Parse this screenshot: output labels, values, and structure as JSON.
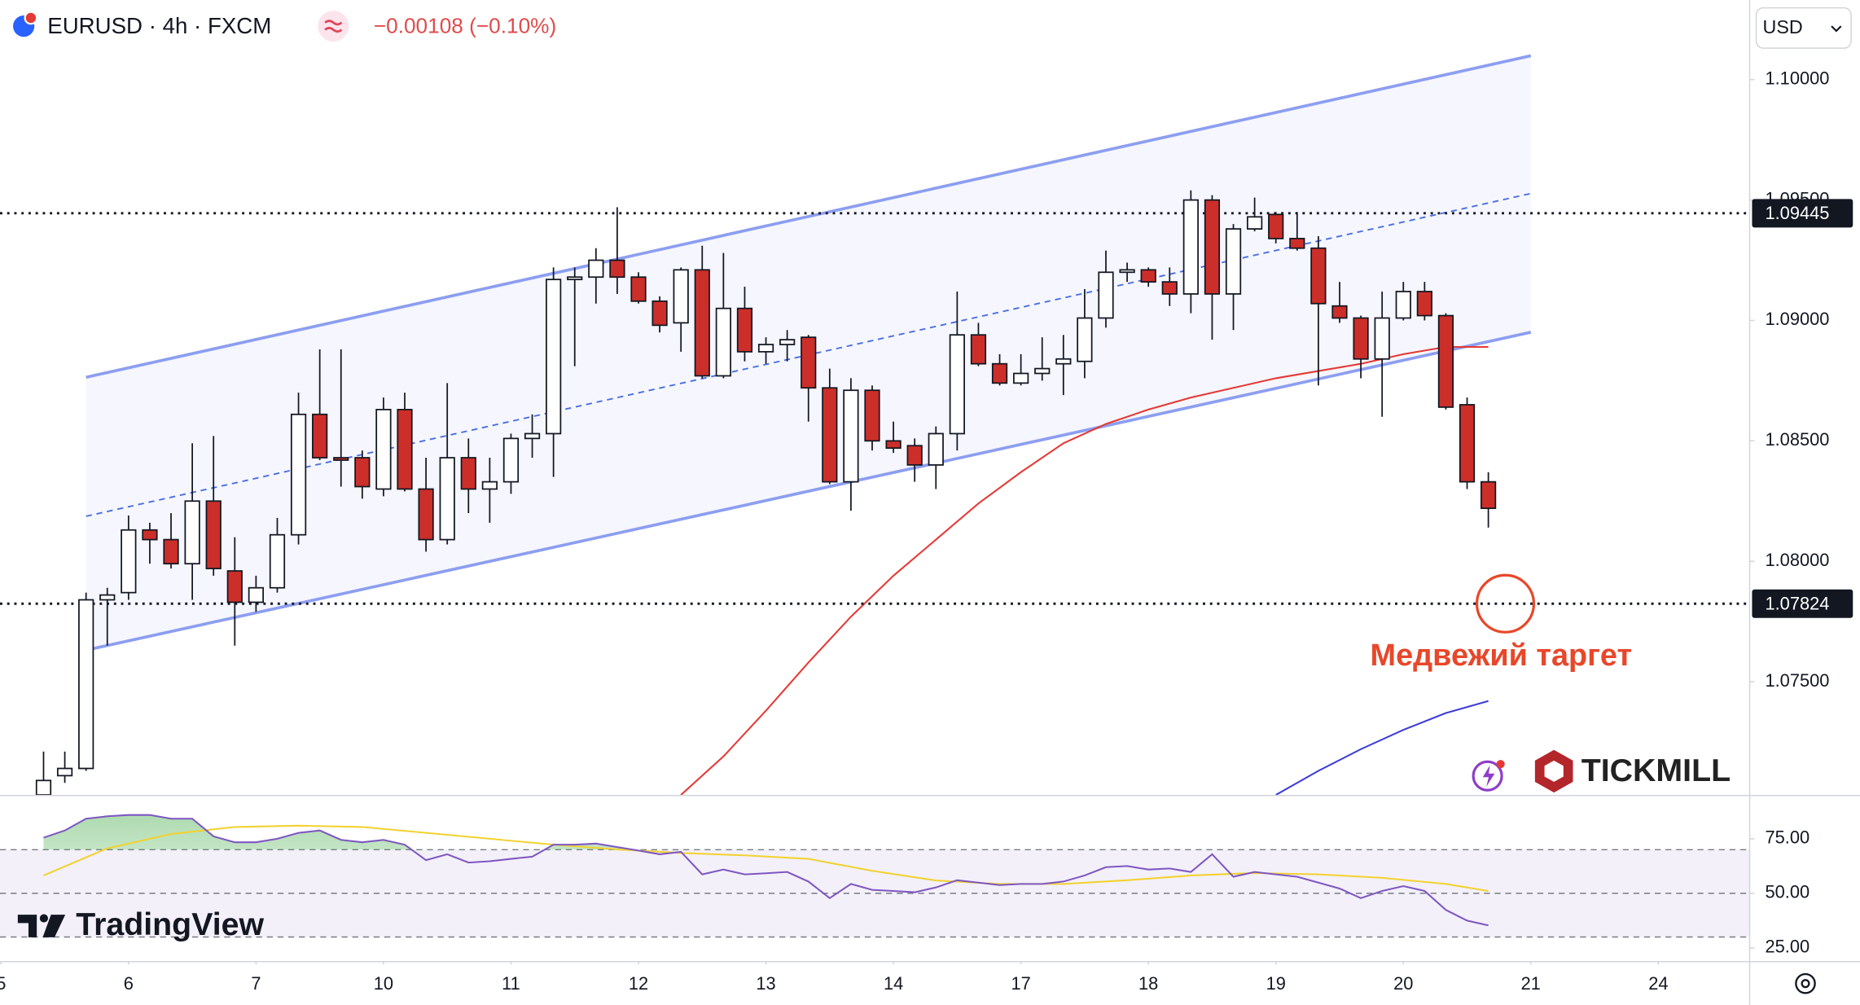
{
  "chart_data": {
    "type": "candlestick",
    "symbol": "EURUSD · 4h · FXCM",
    "change": "−0.00108 (−0.10%)",
    "currency": "USD",
    "annotation": "Медвежий таргет",
    "watermarks": [
      "TradingView",
      "TICKMILL"
    ],
    "up_color": "#ffffff",
    "down_color": "#cc2f2a",
    "open": [
      1.0703,
      1.0711,
      1.0714,
      1.0784,
      1.0787,
      1.0813,
      1.0809,
      1.0799,
      1.0825,
      1.0796,
      1.0783,
      1.0789,
      1.0811,
      1.0861,
      1.0843,
      1.0843,
      1.083,
      1.0863,
      1.083,
      1.0809,
      1.0843,
      1.083,
      1.0833,
      1.0851,
      1.0853,
      1.0917,
      1.0918,
      1.0925,
      1.0918,
      1.0908,
      1.0899,
      1.0921,
      1.0877,
      1.0905,
      1.0887,
      1.089,
      1.0893,
      1.0872,
      1.0833,
      1.0871,
      1.085,
      1.0848,
      1.084,
      1.0853,
      1.0894,
      1.0882,
      1.0874,
      1.0878,
      1.0882,
      1.0883,
      1.0901,
      1.092,
      1.0921,
      1.0916,
      1.0911,
      1.095,
      1.0911,
      1.0938,
      1.0944,
      1.0934,
      1.093,
      1.0906,
      1.0901,
      1.0884,
      1.0901,
      1.0912,
      1.0902,
      1.0865,
      1.0833
    ],
    "high": [
      1.0721,
      1.0721,
      1.0787,
      1.0789,
      1.0819,
      1.0816,
      1.082,
      1.0849,
      1.0852,
      1.081,
      1.0794,
      1.0818,
      1.087,
      1.0888,
      1.0888,
      1.0846,
      1.0868,
      1.087,
      1.0843,
      1.0874,
      1.0851,
      1.0843,
      1.0853,
      1.0861,
      1.0922,
      1.0922,
      1.093,
      1.0947,
      1.092,
      1.091,
      1.0922,
      1.0931,
      1.0928,
      1.0914,
      1.0893,
      1.0896,
      1.0894,
      1.088,
      1.0876,
      1.0873,
      1.0858,
      1.0851,
      1.0856,
      1.0912,
      1.0899,
      1.0886,
      1.0886,
      1.0893,
      1.0894,
      1.0913,
      1.0929,
      1.0924,
      1.0922,
      1.0922,
      1.0954,
      1.0952,
      1.094,
      1.0951,
      1.0945,
      1.0945,
      1.0935,
      1.0916,
      1.0902,
      1.0912,
      1.0916,
      1.0916,
      1.0903,
      1.0868,
      1.0837
    ],
    "low": [
      1.0702,
      1.0708,
      1.0713,
      1.0765,
      1.0784,
      1.0799,
      1.0797,
      1.0784,
      1.0794,
      1.0765,
      1.0779,
      1.0787,
      1.0807,
      1.0842,
      1.0831,
      1.0826,
      1.0827,
      1.0829,
      1.0804,
      1.0807,
      1.082,
      1.0816,
      1.0828,
      1.0843,
      1.0835,
      1.0881,
      1.0907,
      1.0911,
      1.0907,
      1.0895,
      1.0887,
      1.0876,
      1.0876,
      1.0883,
      1.0882,
      1.0883,
      1.0858,
      1.0832,
      1.0821,
      1.0846,
      1.0845,
      1.0833,
      1.083,
      1.0846,
      1.0881,
      1.0873,
      1.0873,
      1.0875,
      1.0869,
      1.0876,
      1.0897,
      1.0916,
      1.0914,
      1.0906,
      1.0903,
      1.0892,
      1.0896,
      1.0937,
      1.0932,
      1.0929,
      1.0873,
      1.0899,
      1.0876,
      1.086,
      1.09,
      1.09,
      1.0863,
      1.083,
      1.0814
    ],
    "close": [
      1.0709,
      1.0714,
      1.0784,
      1.0786,
      1.0813,
      1.0809,
      1.0799,
      1.0825,
      1.0797,
      1.0783,
      1.0789,
      1.0811,
      1.0861,
      1.0843,
      1.0842,
      1.0831,
      1.0863,
      1.083,
      1.0809,
      1.0843,
      1.083,
      1.0833,
      1.0851,
      1.0853,
      1.0917,
      1.0918,
      1.0925,
      1.0918,
      1.0908,
      1.0898,
      1.0921,
      1.0877,
      1.0905,
      1.0887,
      1.089,
      1.0892,
      1.0872,
      1.0833,
      1.0871,
      1.085,
      1.0847,
      1.084,
      1.0853,
      1.0894,
      1.0882,
      1.0874,
      1.0878,
      1.088,
      1.0884,
      1.0901,
      1.092,
      1.0921,
      1.0916,
      1.0911,
      1.095,
      1.0911,
      1.0938,
      1.0943,
      1.0934,
      1.093,
      1.0907,
      1.0901,
      1.0884,
      1.0901,
      1.0912,
      1.0902,
      1.0864,
      1.0833,
      1.0822
    ],
    "ylim": [
      1.0703,
      1.1033
    ],
    "yticks": [
      {
        "value": 1.1,
        "label": "1.10000"
      },
      {
        "value": 1.095,
        "label": "1.09500"
      },
      {
        "value": 1.09,
        "label": "1.09000"
      },
      {
        "value": 1.085,
        "label": "1.08500"
      },
      {
        "value": 1.08,
        "label": "1.08000"
      },
      {
        "value": 1.075,
        "label": "1.07500"
      }
    ],
    "xlim": [
      -2.05,
      80.3
    ],
    "xticks": [
      {
        "value": -2,
        "label": "5"
      },
      {
        "value": 4,
        "label": "6"
      },
      {
        "value": 10,
        "label": "7"
      },
      {
        "value": 16,
        "label": "10"
      },
      {
        "value": 22,
        "label": "11"
      },
      {
        "value": 28,
        "label": "12"
      },
      {
        "value": 34,
        "label": "13"
      },
      {
        "value": 40,
        "label": "14"
      },
      {
        "value": 46,
        "label": "17"
      },
      {
        "value": 52,
        "label": "18"
      },
      {
        "value": 58,
        "label": "19"
      },
      {
        "value": 64,
        "label": "20"
      },
      {
        "value": 70,
        "label": "21"
      },
      {
        "value": 76,
        "label": "24"
      }
    ],
    "levels": [
      1.09445,
      1.07824
    ],
    "channel": {
      "x": [
        2,
        70
      ],
      "upper": [
        1.08764,
        1.10099
      ],
      "middle": [
        1.08187,
        1.09527
      ],
      "lower": [
        1.07631,
        1.08951
      ],
      "color": "#8c9ef0"
    },
    "moving_averages": [
      {
        "color": "#e53935",
        "x": [
          30,
          32,
          34,
          36,
          38,
          40,
          42,
          44,
          46,
          48,
          50,
          52,
          54,
          56,
          58,
          60,
          62,
          64,
          66,
          68
        ],
        "values": [
          1.0703,
          1.0719,
          1.0738,
          1.0758,
          1.0777,
          1.0794,
          1.0809,
          1.0824,
          1.0837,
          1.0849,
          1.0857,
          1.0863,
          1.0868,
          1.0872,
          1.0876,
          1.0879,
          1.0882,
          1.0886,
          1.0889,
          1.0889
        ]
      },
      {
        "color": "#3c3cd8",
        "x": [
          58,
          60,
          62,
          64,
          66,
          68
        ],
        "values": [
          1.0703,
          1.0713,
          1.0722,
          1.073,
          1.0737,
          1.0742
        ]
      }
    ],
    "rsi": {
      "color": "#7e57c2",
      "ma_color": "#f2d230",
      "ylim": [
        19,
        94
      ],
      "yticks": [
        {
          "value": 75,
          "label": "75.00"
        },
        {
          "value": 50,
          "label": "50.00"
        },
        {
          "value": 25,
          "label": "25.00"
        }
      ],
      "levels": [
        70,
        50,
        30
      ],
      "values": [
        75.5,
        78.8,
        84.2,
        85.3,
        85.9,
        85.9,
        84.2,
        84.2,
        76.1,
        73.4,
        73.4,
        75,
        77.7,
        78.8,
        74.5,
        73.4,
        74.5,
        72.3,
        65.2,
        67.9,
        64.1,
        64.7,
        65.8,
        66.8,
        72.3,
        72.3,
        72.8,
        71.2,
        69.6,
        67.9,
        69.0,
        58.7,
        60.9,
        58.7,
        59.2,
        59.8,
        55.4,
        47.8,
        54.3,
        51.6,
        51.1,
        50.5,
        52.7,
        56.0,
        54.9,
        53.8,
        54.3,
        54.3,
        55.4,
        58.2,
        62.0,
        62.5,
        60.9,
        61.4,
        59.8,
        67.9,
        57.6,
        59.8,
        58.7,
        57.6,
        54.9,
        52.2,
        47.8,
        51.1,
        53.3,
        51.1,
        42.4,
        37.5,
        35.3
      ],
      "ma": {
        "x": [
          0,
          3,
          6,
          9,
          12,
          15,
          18,
          21,
          24,
          27,
          30,
          33,
          36,
          39,
          42,
          45,
          48,
          51,
          54,
          57,
          60,
          63,
          66,
          68
        ],
        "values": [
          58.2,
          70.6,
          77.2,
          80.4,
          81.0,
          80.4,
          77.7,
          75,
          72.3,
          70.1,
          68.5,
          67.4,
          65.8,
          60.3,
          55.9,
          54.3,
          54.3,
          56.0,
          58.2,
          59.3,
          58.7,
          57.1,
          54.3,
          51.1
        ]
      }
    }
  }
}
